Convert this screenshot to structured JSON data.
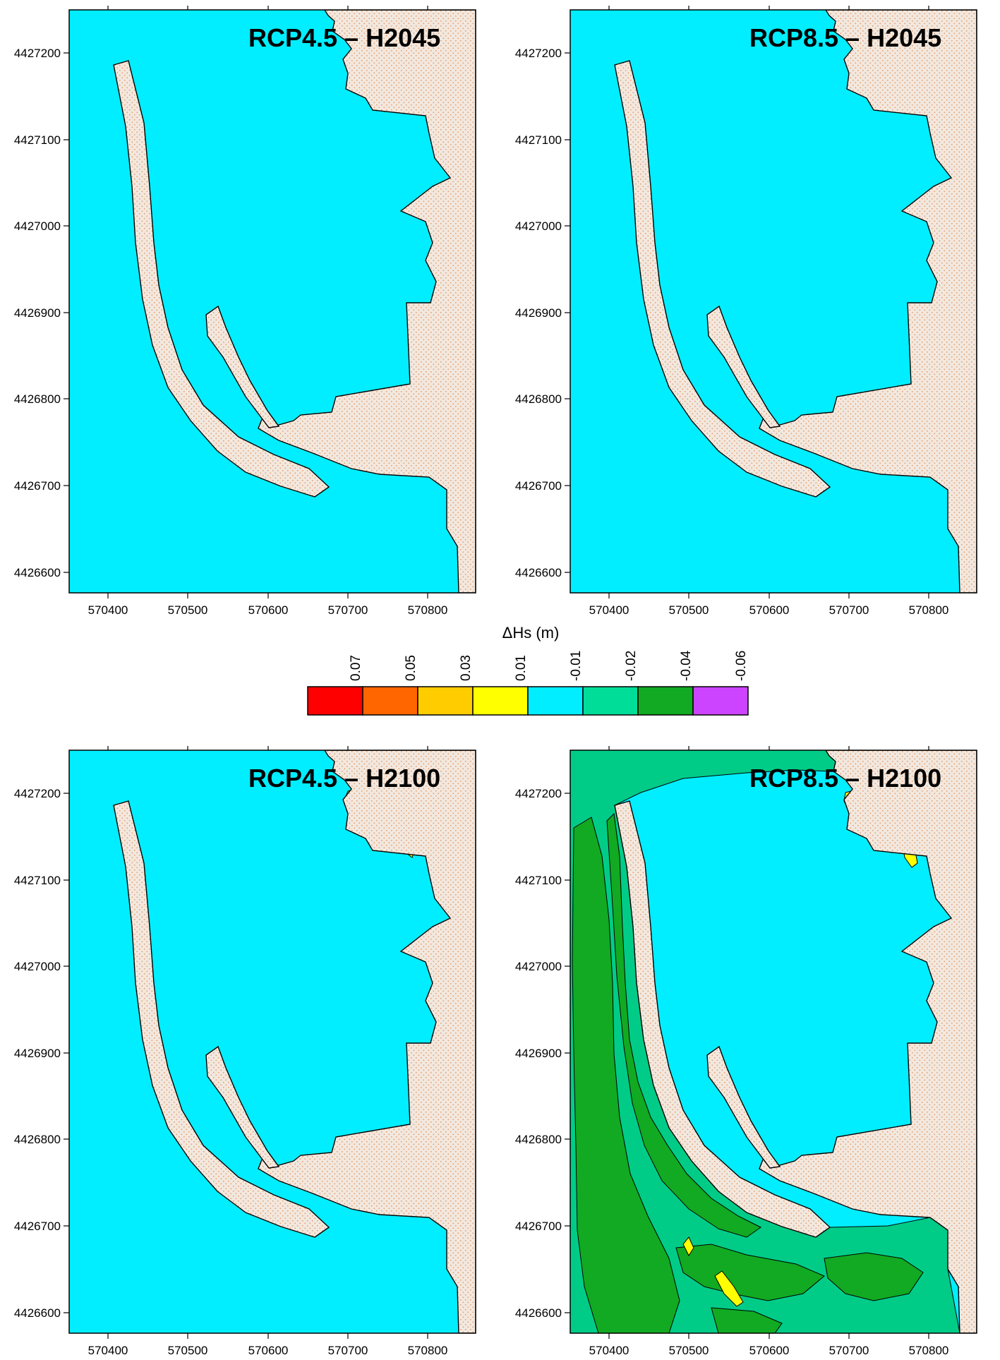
{
  "maps": [
    {
      "title": "RCP4.5 – H2045",
      "y_ticks": [
        "4427200",
        "4427100",
        "4427000",
        "4426900",
        "4426800",
        "4426700",
        "4426600"
      ],
      "x_ticks": [
        "570400",
        "570500",
        "570600",
        "570700",
        "570800"
      ],
      "anomaly_zones": false
    },
    {
      "title": "RCP8.5 – H2045",
      "y_ticks": [
        "4427200",
        "4427100",
        "4427000",
        "4426900",
        "4426800",
        "4426700",
        "4426600"
      ],
      "x_ticks": [
        "570400",
        "570500",
        "570600",
        "570700",
        "570800"
      ],
      "anomaly_zones": false
    },
    {
      "title": "RCP4.5 – H2100",
      "y_ticks": [
        "4427200",
        "4427100",
        "4427000",
        "4426900",
        "4426800",
        "4426700",
        "4426600"
      ],
      "x_ticks": [
        "570400",
        "570500",
        "570600",
        "570700",
        "570800"
      ],
      "anomaly_zones": false
    },
    {
      "title": "RCP8.5 – H2100",
      "y_ticks": [
        "4427200",
        "4427100",
        "4427000",
        "4426900",
        "4426800",
        "4426700",
        "4426600"
      ],
      "x_ticks": [
        "570400",
        "570500",
        "570600",
        "570700",
        "570800"
      ],
      "anomaly_zones": true
    }
  ],
  "legend": {
    "title": "ΔHs (m)",
    "labels": [
      "0.07",
      "0.05",
      "0.03",
      "0.01",
      "-0.01",
      "-0.02",
      "-0.04",
      "-0.06"
    ],
    "colors": [
      "#ff0000",
      "#ff6600",
      "#ffcc00",
      "#ffff00",
      "#00eeff",
      "#00dd99",
      "#11aa22",
      "#cc44ff"
    ]
  },
  "colors": {
    "water": "#00eeff",
    "land": "#f2e8df",
    "land_dots": "#e3a06e",
    "zone_mid": "#00cc88",
    "zone_dark": "#11aa22",
    "zone_positive": "#ffff00"
  }
}
